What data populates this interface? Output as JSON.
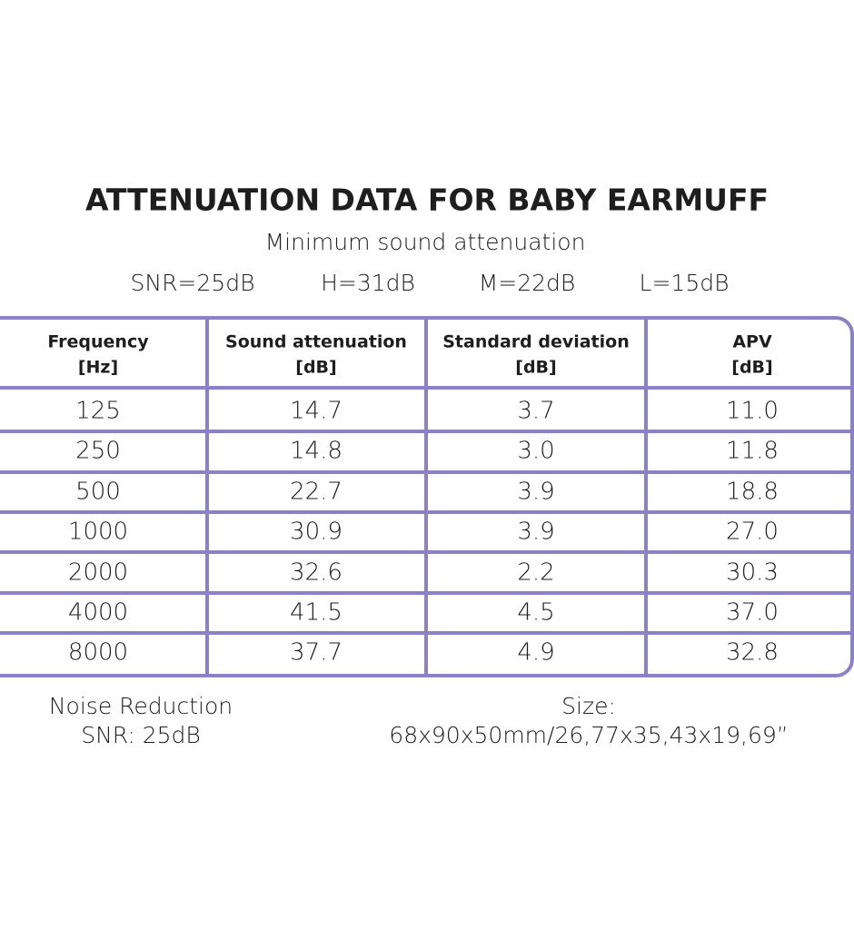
{
  "header": {
    "title": "ATTENUATION DATA FOR BABY EARMUFF",
    "subtitle": "Minimum sound attenuation",
    "specs": [
      "SNR=25dB",
      "H=31dB",
      "M=22dB",
      "L=15dB"
    ]
  },
  "table": {
    "columns": [
      [
        "Frequency",
        "[Hz]"
      ],
      [
        "Sound attenuation",
        "[dB]"
      ],
      [
        "Standard deviation",
        "[dB]"
      ],
      [
        "APV",
        "[dB]"
      ]
    ],
    "rows": [
      [
        "125",
        "14.7",
        "3.7",
        "11.0"
      ],
      [
        "250",
        "14.8",
        "3.0",
        "11.8"
      ],
      [
        "500",
        "22.7",
        "3.9",
        "18.8"
      ],
      [
        "1000",
        "30.9",
        "3.9",
        "27.0"
      ],
      [
        "2000",
        "32.6",
        "2.2",
        "30.3"
      ],
      [
        "4000",
        "41.5",
        "4.5",
        "37.0"
      ],
      [
        "8000",
        "37.7",
        "4.9",
        "32.8"
      ]
    ]
  },
  "footer": {
    "left": [
      "Noise Reduction",
      "SNR: 25dB"
    ],
    "right": [
      "Size:",
      "68x90x50mm/26,77x35,43x19,69”"
    ]
  }
}
